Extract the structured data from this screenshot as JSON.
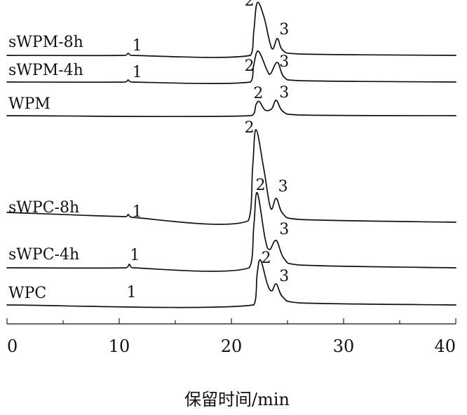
{
  "chart_data": {
    "type": "line",
    "title": "",
    "xlabel": "保留时间/min",
    "ylabel": "",
    "xlim": [
      0,
      40
    ],
    "x_ticks": [
      0,
      10,
      20,
      30,
      40
    ],
    "x_minor_step": 5,
    "grid": false,
    "legend": "none",
    "series": [
      {
        "name": "sWPM-8h",
        "points": [
          [
            0,
            0
          ],
          [
            10.5,
            0
          ],
          [
            10.8,
            0.3
          ],
          [
            11.1,
            0
          ],
          [
            21.7,
            0
          ],
          [
            22.0,
            3.5
          ],
          [
            22.3,
            7.5
          ],
          [
            22.9,
            5.5
          ],
          [
            23.6,
            1.0
          ],
          [
            24.1,
            2.4
          ],
          [
            24.6,
            0.7
          ],
          [
            26.0,
            0.2
          ],
          [
            40,
            0
          ]
        ],
        "peak_labels": [
          {
            "text": "1",
            "x": 11.6,
            "y": 0.7
          },
          {
            "text": "2",
            "x": 21.6,
            "y": 7.1
          },
          {
            "text": "3",
            "x": 24.7,
            "y": 3.0
          }
        ]
      },
      {
        "name": "sWPM-4h",
        "points": [
          [
            0,
            0
          ],
          [
            10.5,
            0
          ],
          [
            10.8,
            0.3
          ],
          [
            11.1,
            0
          ],
          [
            21.7,
            0
          ],
          [
            22.0,
            2.5
          ],
          [
            22.4,
            4.4
          ],
          [
            23.2,
            1.6
          ],
          [
            23.5,
            1.2
          ],
          [
            24.1,
            2.8
          ],
          [
            24.7,
            0.7
          ],
          [
            26.0,
            0.2
          ],
          [
            40,
            0
          ]
        ],
        "peak_labels": [
          {
            "text": "1",
            "x": 11.6,
            "y": 0.7
          },
          {
            "text": "2",
            "x": 21.6,
            "y": 1.6
          },
          {
            "text": "3",
            "x": 24.7,
            "y": 2.2
          }
        ]
      },
      {
        "name": "WPM",
        "points": [
          [
            0,
            0
          ],
          [
            21.8,
            0
          ],
          [
            22.2,
            1.6
          ],
          [
            22.5,
            2.0
          ],
          [
            23.0,
            0.8
          ],
          [
            23.6,
            1.0
          ],
          [
            24.0,
            2.2
          ],
          [
            24.6,
            0.6
          ],
          [
            26.0,
            0.1
          ],
          [
            40,
            0
          ]
        ],
        "peak_labels": [
          {
            "text": "2",
            "x": 22.4,
            "y": 2.5
          },
          {
            "text": "3",
            "x": 24.7,
            "y": 2.6
          }
        ]
      },
      {
        "name": "sWPC-8h",
        "points": [
          [
            0,
            1.4
          ],
          [
            10.5,
            0.8
          ],
          [
            10.8,
            1.1
          ],
          [
            11.1,
            0.7
          ],
          [
            21.5,
            0.2
          ],
          [
            21.9,
            8.0
          ],
          [
            22.2,
            13.2
          ],
          [
            22.9,
            7.5
          ],
          [
            23.5,
            2.0
          ],
          [
            24.0,
            3.4
          ],
          [
            24.6,
            1.2
          ],
          [
            26.0,
            0.4
          ],
          [
            40,
            0
          ]
        ],
        "peak_labels": [
          {
            "text": "1",
            "x": 11.6,
            "y": 0.8
          },
          {
            "text": "2",
            "x": 21.6,
            "y": 12.8
          },
          {
            "text": "3",
            "x": 24.6,
            "y": 4.4
          }
        ]
      },
      {
        "name": "sWPC-4h",
        "points": [
          [
            0,
            0
          ],
          [
            10.6,
            0
          ],
          [
            10.9,
            0.5
          ],
          [
            11.2,
            0
          ],
          [
            21.6,
            0
          ],
          [
            22.0,
            6.0
          ],
          [
            22.3,
            10.7
          ],
          [
            23.0,
            4.2
          ],
          [
            23.4,
            2.6
          ],
          [
            24.0,
            3.9
          ],
          [
            24.7,
            1.3
          ],
          [
            26.0,
            0.4
          ],
          [
            40,
            0
          ]
        ],
        "peak_labels": [
          {
            "text": "1",
            "x": 11.4,
            "y": 1.1
          },
          {
            "text": "2",
            "x": 22.6,
            "y": 11.1
          },
          {
            "text": "3",
            "x": 24.7,
            "y": 4.8
          }
        ]
      },
      {
        "name": "WPC",
        "points": [
          [
            0,
            0
          ],
          [
            22.0,
            0
          ],
          [
            22.3,
            4.5
          ],
          [
            22.6,
            6.4
          ],
          [
            23.2,
            3.0
          ],
          [
            23.6,
            2.0
          ],
          [
            24.0,
            3.0
          ],
          [
            24.6,
            1.1
          ],
          [
            26.0,
            0.3
          ],
          [
            40,
            0
          ]
        ],
        "peak_labels": [
          {
            "text": "1",
            "x": 11.1,
            "y": 1.1
          },
          {
            "text": "2",
            "x": 23.1,
            "y": 6.0
          },
          {
            "text": "3",
            "x": 24.7,
            "y": 3.4
          }
        ]
      }
    ]
  }
}
